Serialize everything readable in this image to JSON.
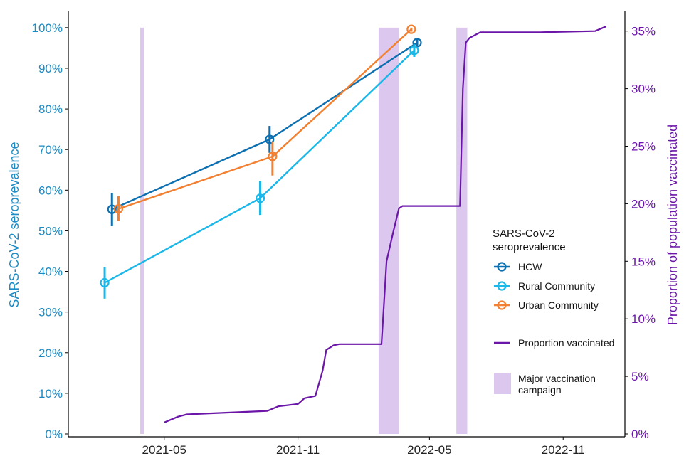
{
  "chart_data": {
    "type": "line",
    "x_axis": {
      "ticks": [
        "2021-05",
        "2021-11",
        "2022-05",
        "2022-11"
      ],
      "range": [
        "2020-12-20",
        "2023-01-25"
      ]
    },
    "left_axis": {
      "label": "SARS-CoV-2 seroprevalence",
      "range": [
        -0.7,
        104
      ],
      "ticks": [
        0,
        10,
        20,
        30,
        40,
        50,
        60,
        70,
        80,
        90,
        100
      ],
      "tick_labels": [
        "0%",
        "10%",
        "20%",
        "30%",
        "40%",
        "50%",
        "60%",
        "70%",
        "80%",
        "90%",
        "100%"
      ],
      "color": "#1a8bc4"
    },
    "right_axis": {
      "label": "Proportion of population vaccinated",
      "ticks": [
        0,
        5,
        10,
        15,
        20,
        25,
        30,
        35
      ],
      "tick_labels": [
        "0%",
        "5%",
        "10%",
        "15%",
        "20%",
        "25%",
        "30%",
        "35%"
      ],
      "color": "#6b16a8"
    },
    "campaigns": [
      {
        "start": "2021-03-29",
        "end": "2021-04-03"
      },
      {
        "start": "2022-02-20",
        "end": "2022-03-20"
      },
      {
        "start": "2022-06-07",
        "end": "2022-06-22"
      }
    ],
    "series": [
      {
        "name": "HCW",
        "color": "#0c6fb0",
        "points": [
          {
            "x": "2021-02-18",
            "y": 55.3,
            "lo": 51.2,
            "hi": 59.3
          },
          {
            "x": "2021-09-23",
            "y": 72.5,
            "lo": 69.2,
            "hi": 75.8
          },
          {
            "x": "2022-04-14",
            "y": 96.3,
            "lo": 95.2,
            "hi": 97.4
          }
        ]
      },
      {
        "name": "Rural Community",
        "color": "#1ab7e8",
        "points": [
          {
            "x": "2021-02-08",
            "y": 37.2,
            "lo": 33.3,
            "hi": 41.1
          },
          {
            "x": "2021-09-10",
            "y": 58.0,
            "lo": 53.9,
            "hi": 62.2
          },
          {
            "x": "2022-04-10",
            "y": 94.4,
            "lo": 92.8,
            "hi": 95.9
          }
        ]
      },
      {
        "name": "Urban Community",
        "color": "#f28030",
        "points": [
          {
            "x": "2021-02-27",
            "y": 55.4,
            "lo": 52.4,
            "hi": 58.5
          },
          {
            "x": "2021-09-27",
            "y": 68.3,
            "lo": 63.6,
            "hi": 72.0
          },
          {
            "x": "2022-04-06",
            "y": 99.6,
            "lo": 99.0,
            "hi": 100.0
          }
        ]
      }
    ],
    "vaccinated": {
      "name": "Proportion vaccinated",
      "color": "#6b16a8",
      "points": [
        {
          "x": "2021-05-01",
          "y": 1.0
        },
        {
          "x": "2021-05-20",
          "y": 1.5
        },
        {
          "x": "2021-06-01",
          "y": 1.7
        },
        {
          "x": "2021-09-20",
          "y": 2.0
        },
        {
          "x": "2021-10-05",
          "y": 2.4
        },
        {
          "x": "2021-11-01",
          "y": 2.6
        },
        {
          "x": "2021-11-10",
          "y": 3.1
        },
        {
          "x": "2021-11-25",
          "y": 3.3
        },
        {
          "x": "2021-12-05",
          "y": 5.5
        },
        {
          "x": "2021-12-10",
          "y": 7.3
        },
        {
          "x": "2021-12-20",
          "y": 7.7
        },
        {
          "x": "2021-12-28",
          "y": 7.8
        },
        {
          "x": "2022-02-24",
          "y": 7.8
        },
        {
          "x": "2022-03-03",
          "y": 15.0
        },
        {
          "x": "2022-03-12",
          "y": 17.5
        },
        {
          "x": "2022-03-20",
          "y": 19.6
        },
        {
          "x": "2022-03-25",
          "y": 19.8
        },
        {
          "x": "2022-06-12",
          "y": 19.8
        },
        {
          "x": "2022-06-16",
          "y": 30.0
        },
        {
          "x": "2022-06-20",
          "y": 34.0
        },
        {
          "x": "2022-06-25",
          "y": 34.4
        },
        {
          "x": "2022-07-10",
          "y": 34.9
        },
        {
          "x": "2022-10-01",
          "y": 34.9
        },
        {
          "x": "2022-12-15",
          "y": 35.0
        },
        {
          "x": "2022-12-30",
          "y": 35.4
        }
      ]
    },
    "legend": {
      "placement": "right",
      "title": "SARS-CoV-2 seroprevalence",
      "title_lines": [
        "SARS-CoV-2",
        "seroprevalence"
      ],
      "line_label": "Proportion vaccinated",
      "campaign_label_lines": [
        "Major vaccination",
        "campaign"
      ]
    },
    "campaign_color": "#dcc7ef",
    "grid": false
  }
}
